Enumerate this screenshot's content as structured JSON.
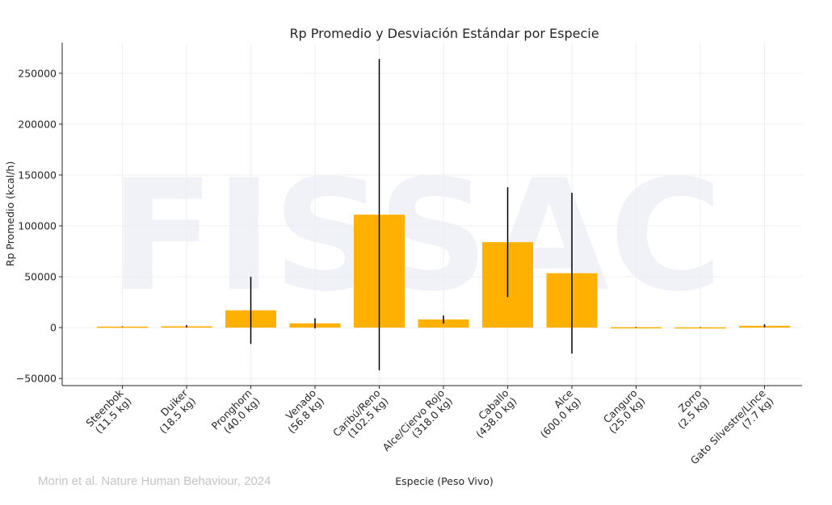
{
  "chart_data": {
    "type": "bar",
    "title": "Rp Promedio y Desviación Estándar por Especie",
    "xlabel": "Especie (Peso Vivo)",
    "ylabel": "Rp Promedio (kcal/h)",
    "ylim": [
      -57000,
      280000
    ],
    "yticks": [
      -50000,
      0,
      50000,
      100000,
      150000,
      200000,
      250000
    ],
    "ytick_labels": [
      "−50000",
      "0",
      "50000",
      "100000",
      "150000",
      "200000",
      "250000"
    ],
    "categories": [
      [
        "Steenbok",
        "(11.5 kg)"
      ],
      [
        "Duiker",
        "(18.5 kg)"
      ],
      [
        "Pronghorn",
        "(40.0 kg)"
      ],
      [
        "Venado",
        "(56.8 kg)"
      ],
      [
        "Caribú/Reno",
        "(102.5 kg)"
      ],
      [
        "Alce/Ciervo Rojo",
        "(318.0 kg)"
      ],
      [
        "Caballo",
        "(438.0 kg)"
      ],
      [
        "Alce",
        "(600.0 kg)"
      ],
      [
        "Canguro",
        "(25.0 kg)"
      ],
      [
        "Zorro",
        "(2.5 kg)"
      ],
      [
        "Gato Silvestre/Lince",
        "(7.7 kg)"
      ]
    ],
    "values": [
      1000,
      1300,
      17000,
      4200,
      111000,
      8000,
      84000,
      53500,
      400,
      300,
      1800
    ],
    "errors": [
      300,
      1200,
      33000,
      5000,
      153000,
      4000,
      54000,
      79000,
      300,
      200,
      1500
    ],
    "bar_color": "#ffb000",
    "error_color": "#000000",
    "grid": true,
    "watermark": "FISSAC"
  },
  "credit": "Morin et al. Nature Human Behaviour, 2024"
}
